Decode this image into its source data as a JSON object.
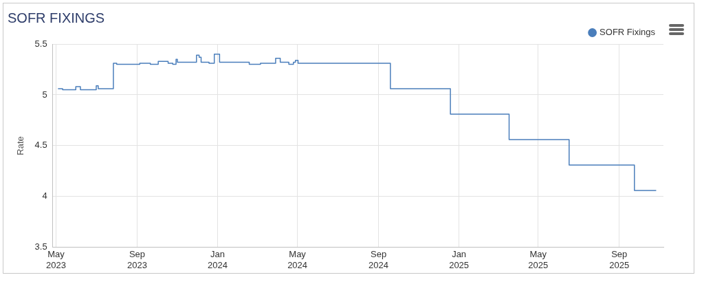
{
  "chart_data": {
    "type": "step",
    "title": "SOFR FIXINGS",
    "ylabel": "Rate",
    "legend": "top right",
    "grid": true,
    "marker": "none",
    "line_style": "solid",
    "xlim": [
      "2023-04-26",
      "2025-11-07"
    ],
    "xticks": [
      {
        "value": "2023-05-01",
        "label": "May 2023"
      },
      {
        "value": "2023-09-01",
        "label": "Sep 2023"
      },
      {
        "value": "2024-01-01",
        "label": "Jan 2024"
      },
      {
        "value": "2024-05-01",
        "label": "May 2024"
      },
      {
        "value": "2024-09-01",
        "label": "Sep 2024"
      },
      {
        "value": "2025-01-01",
        "label": "Jan 2025"
      },
      {
        "value": "2025-05-01",
        "label": "May 2025"
      },
      {
        "value": "2025-09-01",
        "label": "Sep 2025"
      }
    ],
    "ylim": [
      3.5,
      5.5
    ],
    "yticks": [
      3.5,
      4,
      4.5,
      5,
      5.5
    ],
    "series": [
      {
        "name": "SOFR Fixings",
        "color": "#4a7ebb",
        "x": [
          "2023-05-04",
          "2023-05-11",
          "2023-05-21",
          "2023-05-31",
          "2023-06-07",
          "2023-06-28",
          "2023-07-01",
          "2023-07-04",
          "2023-07-25",
          "2023-07-27",
          "2023-08-01",
          "2023-08-29",
          "2023-09-05",
          "2023-09-21",
          "2023-10-03",
          "2023-10-18",
          "2023-10-25",
          "2023-10-30",
          "2023-11-01",
          "2023-11-27",
          "2023-11-30",
          "2023-12-04",
          "2023-12-07",
          "2023-12-19",
          "2023-12-27",
          "2024-01-01",
          "2024-01-04",
          "2024-01-16",
          "2024-02-18",
          "2024-03-06",
          "2024-03-23",
          "2024-03-29",
          "2024-04-05",
          "2024-04-18",
          "2024-04-25",
          "2024-04-28",
          "2024-05-02",
          "2024-09-19",
          "2024-12-19",
          "2025-03-18",
          "2025-06-17",
          "2025-09-24",
          "2025-10-27"
        ],
        "values": [
          5.06,
          5.05,
          5.05,
          5.08,
          5.05,
          5.05,
          5.09,
          5.06,
          5.06,
          5.31,
          5.3,
          5.3,
          5.31,
          5.3,
          5.33,
          5.31,
          5.3,
          5.35,
          5.32,
          5.32,
          5.39,
          5.37,
          5.32,
          5.31,
          5.4,
          5.4,
          5.32,
          5.32,
          5.3,
          5.31,
          5.31,
          5.36,
          5.32,
          5.3,
          5.32,
          5.34,
          5.31,
          5.06,
          4.81,
          4.56,
          4.31,
          4.06,
          4.06
        ]
      }
    ]
  }
}
